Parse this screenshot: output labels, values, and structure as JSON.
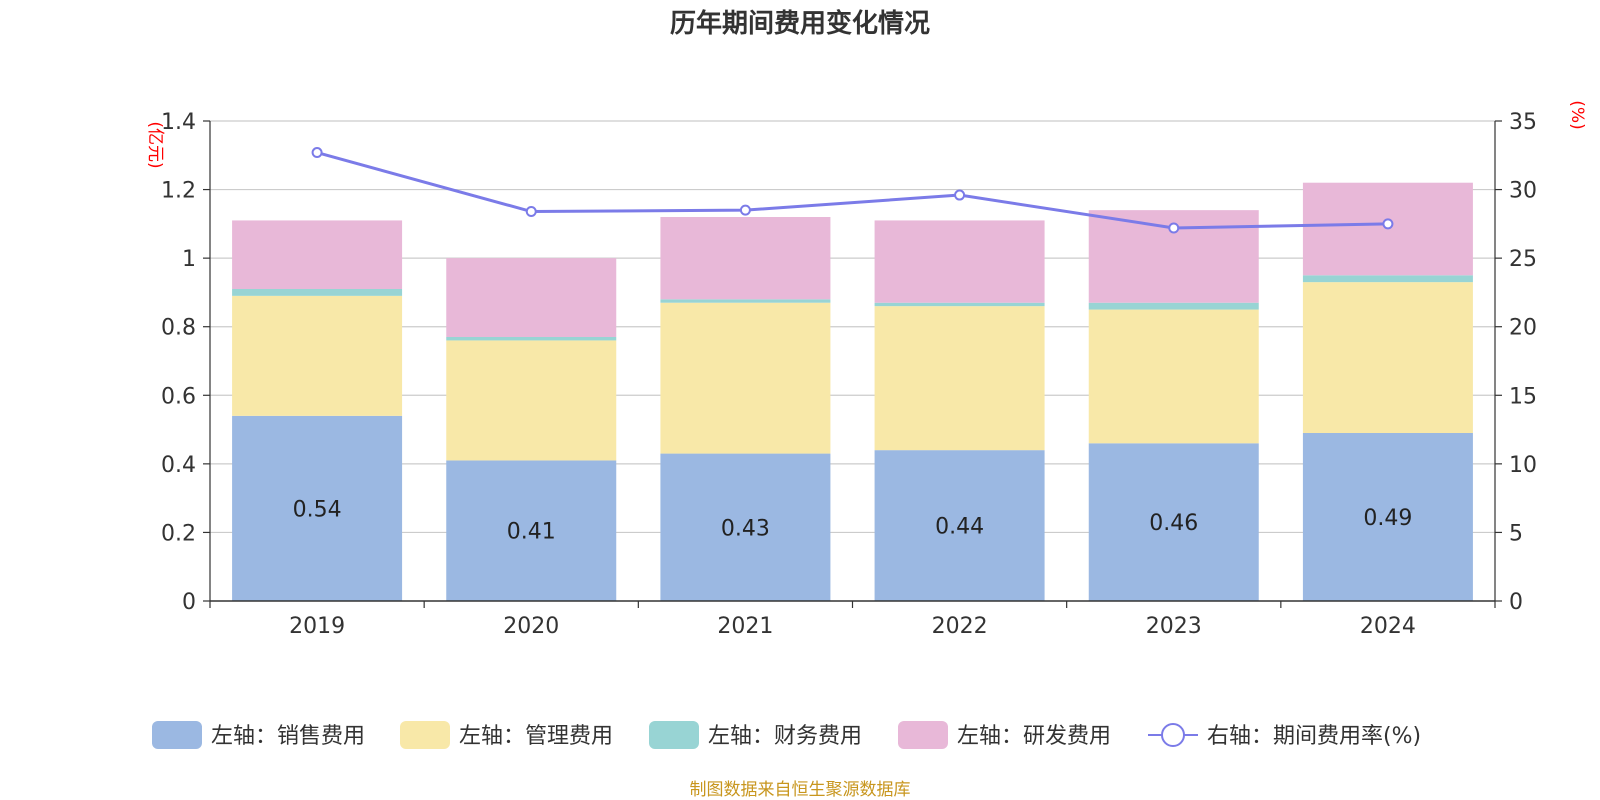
{
  "chart_data": {
    "type": "bar",
    "stacked": true,
    "title": "历年期间费用变化情况",
    "categories": [
      "2019",
      "2020",
      "2021",
      "2022",
      "2023",
      "2024"
    ],
    "y_left": {
      "unit": "(亿元)",
      "min": 0,
      "max": 1.4,
      "ticks": [
        "0",
        "0.2",
        "0.4",
        "0.6",
        "0.8",
        "1",
        "1.2",
        "1.4"
      ]
    },
    "y_right": {
      "unit": "(%)",
      "min": 0,
      "max": 35,
      "ticks": [
        "0",
        "5",
        "10",
        "15",
        "20",
        "25",
        "30",
        "35"
      ]
    },
    "series": [
      {
        "name": "左轴：销售费用",
        "axis": "left",
        "kind": "bar",
        "color": "#9bb8e2",
        "values": [
          0.54,
          0.41,
          0.43,
          0.44,
          0.46,
          0.49
        ],
        "labels": [
          "0.54",
          "0.41",
          "0.43",
          "0.44",
          "0.46",
          "0.49"
        ]
      },
      {
        "name": "左轴：管理费用",
        "axis": "left",
        "kind": "bar",
        "color": "#f8e8a8",
        "values": [
          0.35,
          0.35,
          0.44,
          0.42,
          0.39,
          0.44
        ]
      },
      {
        "name": "左轴：财务费用",
        "axis": "left",
        "kind": "bar",
        "color": "#98d4d4",
        "values": [
          0.02,
          0.01,
          0.01,
          0.01,
          0.02,
          0.02
        ]
      },
      {
        "name": "左轴：研发费用",
        "axis": "left",
        "kind": "bar",
        "color": "#e8b8d8",
        "values": [
          0.2,
          0.23,
          0.24,
          0.24,
          0.27,
          0.27
        ]
      },
      {
        "name": "右轴：期间费用率(%)",
        "axis": "right",
        "kind": "line",
        "color": "#7b7be8",
        "values": [
          32.7,
          28.4,
          28.5,
          29.6,
          27.2,
          27.5
        ]
      }
    ],
    "grid": true,
    "legend": "bottom"
  },
  "footer": {
    "source": "制图数据来自恒生聚源数据库"
  }
}
